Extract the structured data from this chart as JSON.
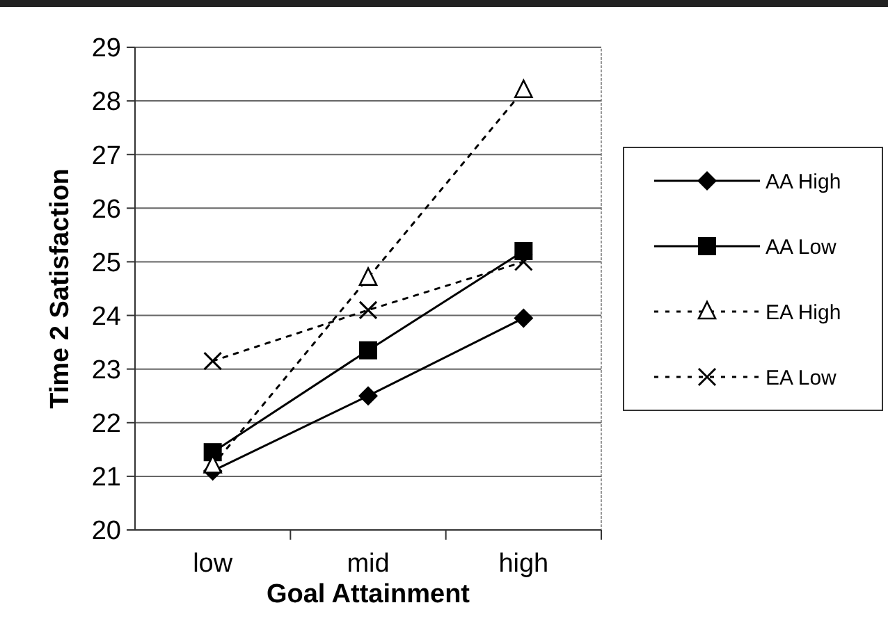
{
  "chart_data": {
    "type": "line",
    "xlabel": "Goal Attainment",
    "ylabel": "Time 2 Satisfaction",
    "categories": [
      "low",
      "mid",
      "high"
    ],
    "ylim": [
      20,
      29
    ],
    "yticks": [
      20,
      21,
      22,
      23,
      24,
      25,
      26,
      27,
      28,
      29
    ],
    "grid": "y",
    "legend": "right",
    "series": [
      {
        "name": "AA High",
        "color": "#000000",
        "values": [
          21.1,
          22.5,
          23.95
        ],
        "marker": "diamond",
        "line_style": "solid"
      },
      {
        "name": "AA Low",
        "color": "#000000",
        "values": [
          21.45,
          23.35,
          25.2
        ],
        "marker": "square",
        "line_style": "solid"
      },
      {
        "name": "EA High",
        "color": "#000000",
        "values": [
          21.2,
          24.7,
          28.2
        ],
        "marker": "triangle",
        "line_style": "dotted"
      },
      {
        "name": "EA Low",
        "color": "#000000",
        "values": [
          23.15,
          24.1,
          25.0
        ],
        "marker": "cross",
        "line_style": "dotted"
      }
    ]
  }
}
